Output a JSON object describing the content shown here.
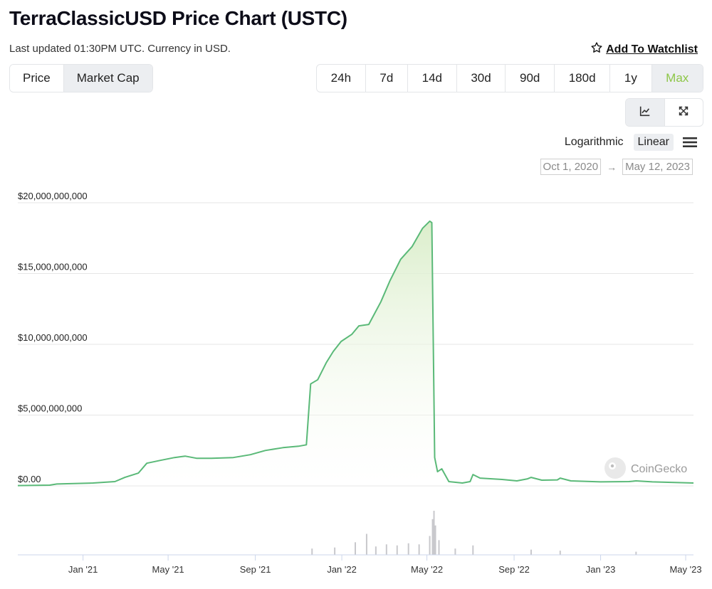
{
  "header": {
    "title": "TerraClassicUSD Price Chart (USTC)",
    "updated": "Last updated 01:30PM UTC. Currency in USD.",
    "watchlist_label": "Add To Watchlist"
  },
  "tabs": [
    {
      "label": "Price",
      "active": false
    },
    {
      "label": "Market Cap",
      "active": true
    }
  ],
  "ranges": [
    {
      "label": "24h",
      "active": false
    },
    {
      "label": "7d",
      "active": false
    },
    {
      "label": "14d",
      "active": false
    },
    {
      "label": "30d",
      "active": false
    },
    {
      "label": "90d",
      "active": false
    },
    {
      "label": "180d",
      "active": false
    },
    {
      "label": "1y",
      "active": false
    },
    {
      "label": "Max",
      "active": true
    }
  ],
  "views": {
    "line_icon": "line-chart-icon",
    "expand_icon": "expand-icon",
    "active": "line"
  },
  "scale": {
    "log_label": "Logarithmic",
    "linear_label": "Linear",
    "active": "Linear",
    "menu_icon": "menu-icon"
  },
  "date_range": {
    "from": "Oct 1, 2020",
    "to": "May 12, 2023"
  },
  "watermark": "CoinGecko",
  "colors": {
    "line": "#5ab978",
    "fill_top": "#d9edc8",
    "accent": "#8dc647",
    "volume": "#c8c8cc"
  },
  "chart_data": {
    "type": "area",
    "title": "",
    "xlabel": "",
    "ylabel": "",
    "ylim": [
      0,
      20000000000
    ],
    "y_ticks": [
      {
        "value": 0,
        "label": "$0.00"
      },
      {
        "value": 5000000000,
        "label": "$5,000,000,000"
      },
      {
        "value": 10000000000,
        "label": "$10,000,000,000"
      },
      {
        "value": 15000000000,
        "label": "$15,000,000,000"
      },
      {
        "value": 20000000000,
        "label": "$20,000,000,000"
      }
    ],
    "x_range": [
      "2020-10-01",
      "2023-05-12"
    ],
    "x_ticks": [
      {
        "date": "2021-01-01",
        "label": "Jan '21"
      },
      {
        "date": "2021-05-01",
        "label": "May '21"
      },
      {
        "date": "2021-09-01",
        "label": "Sep '21"
      },
      {
        "date": "2022-01-01",
        "label": "Jan '22"
      },
      {
        "date": "2022-05-01",
        "label": "May '22"
      },
      {
        "date": "2022-09-01",
        "label": "Sep '22"
      },
      {
        "date": "2023-01-01",
        "label": "Jan '23"
      },
      {
        "date": "2023-05-01",
        "label": "May '23"
      }
    ],
    "grid": true,
    "series": [
      {
        "values": [
          [
            "2020-10-01",
            20000000.0
          ],
          [
            "2020-11-15",
            50000000.0
          ],
          [
            "2020-11-25",
            130000000.0
          ],
          [
            "2021-01-15",
            200000000.0
          ],
          [
            "2021-02-15",
            300000000.0
          ],
          [
            "2021-03-01",
            600000000.0
          ],
          [
            "2021-03-20",
            900000000.0
          ],
          [
            "2021-04-01",
            1600000000.0
          ],
          [
            "2021-04-20",
            1800000000.0
          ],
          [
            "2021-05-10",
            2000000000.0
          ],
          [
            "2021-05-25",
            2100000000.0
          ],
          [
            "2021-06-10",
            1950000000.0
          ],
          [
            "2021-07-01",
            1950000000.0
          ],
          [
            "2021-08-01",
            2000000000.0
          ],
          [
            "2021-08-25",
            2200000000.0
          ],
          [
            "2021-09-15",
            2500000000.0
          ],
          [
            "2021-10-10",
            2700000000.0
          ],
          [
            "2021-11-01",
            2800000000.0
          ],
          [
            "2021-11-12",
            2900000000.0
          ],
          [
            "2021-11-18",
            7200000000.0
          ],
          [
            "2021-11-28",
            7500000000.0
          ],
          [
            "2021-12-10",
            8700000000.0
          ],
          [
            "2021-12-20",
            9500000000.0
          ],
          [
            "2021-12-31",
            10200000000.0
          ],
          [
            "2022-01-15",
            10700000000.0
          ],
          [
            "2022-01-25",
            11300000000.0
          ],
          [
            "2022-02-08",
            11400000000.0
          ],
          [
            "2022-02-25",
            13000000000.0
          ],
          [
            "2022-03-10",
            14500000000.0
          ],
          [
            "2022-03-25",
            16000000000.0
          ],
          [
            "2022-04-10",
            16900000000.0
          ],
          [
            "2022-04-25",
            18200000000.0
          ],
          [
            "2022-05-05",
            18700000000.0
          ],
          [
            "2022-05-08",
            18600000000.0
          ],
          [
            "2022-05-12",
            2000000000.0
          ],
          [
            "2022-05-16",
            1000000000.0
          ],
          [
            "2022-05-22",
            1200000000.0
          ],
          [
            "2022-06-01",
            300000000.0
          ],
          [
            "2022-06-20",
            200000000.0
          ],
          [
            "2022-07-01",
            300000000.0
          ],
          [
            "2022-07-05",
            800000000.0
          ],
          [
            "2022-07-15",
            550000000.0
          ],
          [
            "2022-08-15",
            450000000.0
          ],
          [
            "2022-09-05",
            350000000.0
          ],
          [
            "2022-09-20",
            500000000.0
          ],
          [
            "2022-09-25",
            600000000.0
          ],
          [
            "2022-10-10",
            400000000.0
          ],
          [
            "2022-11-01",
            420000000.0
          ],
          [
            "2022-11-05",
            550000000.0
          ],
          [
            "2022-11-20",
            350000000.0
          ],
          [
            "2023-01-01",
            280000000.0
          ],
          [
            "2023-02-10",
            300000000.0
          ],
          [
            "2023-02-20",
            350000000.0
          ],
          [
            "2023-03-15",
            280000000.0
          ],
          [
            "2023-05-12",
            200000000.0
          ]
        ]
      }
    ],
    "volume_spikes": [
      [
        "2021-11-20",
        0.3
      ],
      [
        "2021-12-22",
        0.35
      ],
      [
        "2022-01-20",
        0.6
      ],
      [
        "2022-02-05",
        1.0
      ],
      [
        "2022-02-18",
        0.4
      ],
      [
        "2022-03-05",
        0.5
      ],
      [
        "2022-03-20",
        0.45
      ],
      [
        "2022-04-05",
        0.55
      ],
      [
        "2022-04-20",
        0.5
      ],
      [
        "2022-05-05",
        0.9
      ],
      [
        "2022-05-09",
        1.7
      ],
      [
        "2022-05-11",
        2.1
      ],
      [
        "2022-05-13",
        1.4
      ],
      [
        "2022-05-18",
        0.7
      ],
      [
        "2022-06-10",
        0.3
      ],
      [
        "2022-07-05",
        0.45
      ],
      [
        "2022-09-25",
        0.25
      ],
      [
        "2022-11-05",
        0.2
      ],
      [
        "2023-02-20",
        0.15
      ]
    ]
  }
}
